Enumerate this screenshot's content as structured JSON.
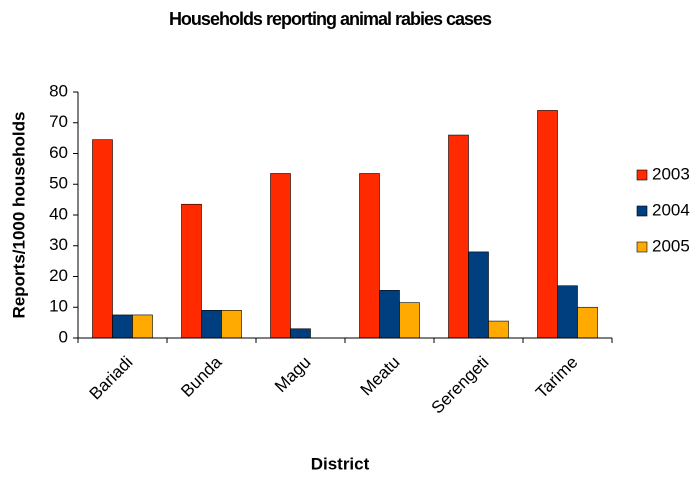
{
  "chart_data": {
    "type": "bar",
    "title": "Households reporting animal rabies cases",
    "x_label": "District",
    "y_label": "Reports/1000 households",
    "categories": [
      "Bariadi",
      "Bunda",
      "Magu",
      "Meatu",
      "Serengeti",
      "Tarime"
    ],
    "series": [
      {
        "name": "2003",
        "color": "#ff2a00",
        "values": [
          64.5,
          43.5,
          53.5,
          53.5,
          66,
          74
        ]
      },
      {
        "name": "2004",
        "color": "#003f7f",
        "values": [
          7.5,
          9,
          3,
          15.5,
          28,
          17
        ]
      },
      {
        "name": "2005",
        "color": "#ffaa00",
        "values": [
          7.5,
          9,
          0,
          11.5,
          5.5,
          10
        ]
      }
    ],
    "ylim": [
      0,
      80
    ],
    "yticks": [
      0,
      10,
      20,
      30,
      40,
      50,
      60,
      70,
      80
    ],
    "grid": false,
    "legend": "right"
  }
}
